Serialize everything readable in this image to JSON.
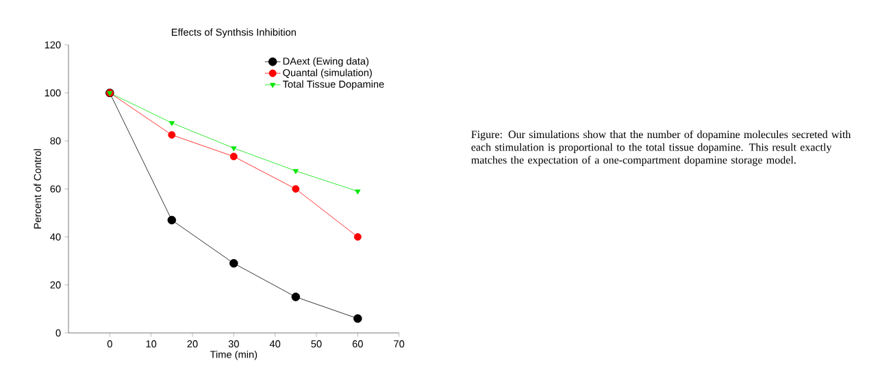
{
  "chart_data": {
    "type": "line",
    "title": "Effects of Synthsis Inhibition",
    "xlabel": "Time (min)",
    "ylabel": "Percent of Control",
    "x": [
      0,
      15,
      30,
      45,
      60
    ],
    "series": [
      {
        "name": "DAext (Ewing data)",
        "color": "#000000",
        "marker": "circle",
        "values": [
          100,
          47,
          29,
          15,
          6
        ]
      },
      {
        "name": "Quantal (simulation)",
        "color": "#ff0000",
        "marker": "circle",
        "values": [
          100,
          82.5,
          73.5,
          60,
          40
        ]
      },
      {
        "name": "Total Tissue Dopamine",
        "color": "#00e600",
        "marker": "triangle",
        "values": [
          100,
          87.5,
          77,
          67.5,
          59
        ]
      }
    ],
    "xlim": [
      -10,
      70
    ],
    "xticks": [
      0,
      10,
      20,
      30,
      40,
      50,
      60,
      70
    ],
    "ylim": [
      0,
      120
    ],
    "yticks": [
      0,
      20,
      40,
      60,
      80,
      100,
      120
    ],
    "grid": false,
    "legend": "top right",
    "line_style": "solid",
    "annotations": [
      "Figure:  Our simulations show that the number of dopamine molecules secreted with each stimulation is proportional to the total tissue dopamine. This result exactly matches the expectation of a one-compartment dopamine storage model."
    ]
  }
}
